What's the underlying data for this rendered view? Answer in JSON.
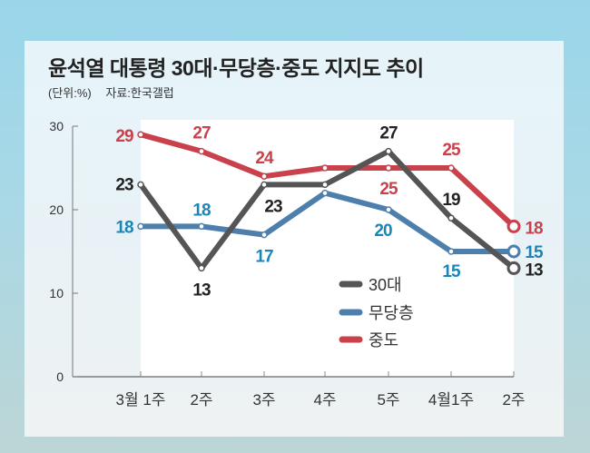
{
  "chart_data": {
    "type": "line",
    "title": "윤석열 대통령 30대·무당층·중도 지지도 추이",
    "unit_label": "(단위:%)",
    "source_label": "자료:한국갤럽",
    "categories": [
      "3월 1주",
      "2주",
      "3주",
      "4주",
      "5주",
      "4월1주",
      "2주"
    ],
    "ylim": [
      0,
      30
    ],
    "yticks": [
      "0",
      "10",
      "20",
      "30"
    ],
    "ytick_values": [
      0,
      10,
      20,
      30
    ],
    "legend_position": "bottom-center",
    "series": [
      {
        "name": "30대",
        "color": "#555555",
        "label_color": "#222222",
        "values": [
          23,
          13,
          23,
          23,
          27,
          19,
          13
        ],
        "labels": [
          "23",
          "13",
          "23",
          null,
          "27",
          "19",
          "13"
        ]
      },
      {
        "name": "무당층",
        "color": "#4e7fac",
        "label_color": "#1a86b8",
        "values": [
          18,
          18,
          17,
          22,
          20,
          15,
          15
        ],
        "labels": [
          "18",
          "18",
          "17",
          null,
          "20",
          "15",
          "15"
        ]
      },
      {
        "name": "중도",
        "color": "#c8414b",
        "label_color": "#c8414b",
        "values": [
          29,
          27,
          24,
          25,
          25,
          25,
          18
        ],
        "labels": [
          "29",
          "27",
          "24",
          null,
          "25",
          "25",
          "18"
        ]
      }
    ]
  }
}
